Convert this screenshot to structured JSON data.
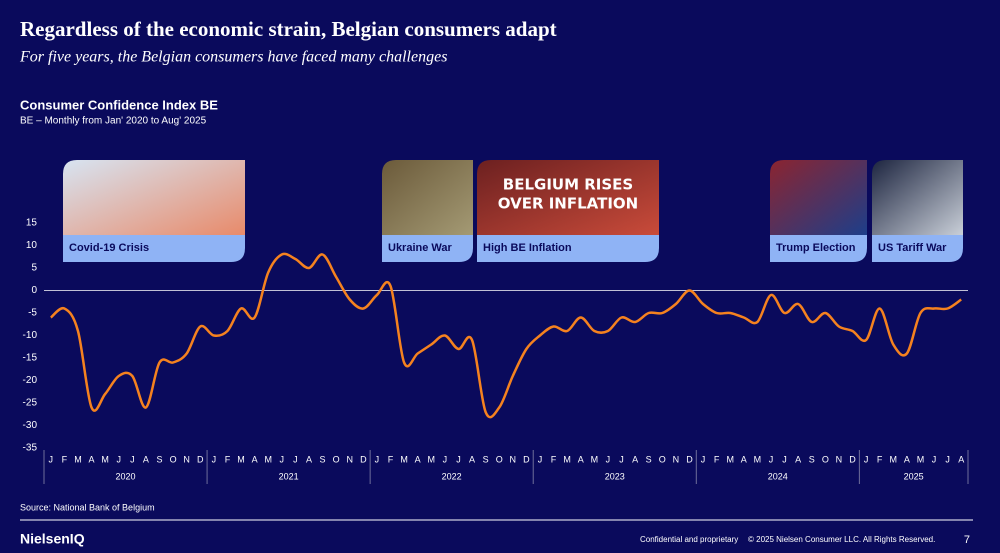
{
  "slide": {
    "headline": "Regardless of the economic strain, Belgian consumers adapt",
    "subheadline": "For five years, the Belgian consumers have faced many challenges",
    "source": "Source: National Bank of Belgium",
    "logo": "NielsenIQ",
    "confidential": "Confidential and proprietary",
    "copyright": "© 2025 Nielsen Consumer LLC. All Rights Reserved.",
    "page_number": "7"
  },
  "chart_data": {
    "type": "line",
    "title": "Consumer Confidence Index BE",
    "subtitle": "BE – Monthly from Jan' 2020 to Aug' 2025",
    "categories": [
      "J",
      "F",
      "M",
      "A",
      "M",
      "J",
      "J",
      "A",
      "S",
      "O",
      "N",
      "D",
      "J",
      "F",
      "M",
      "A",
      "M",
      "J",
      "J",
      "A",
      "S",
      "O",
      "N",
      "D",
      "J",
      "F",
      "M",
      "A",
      "M",
      "J",
      "J",
      "A",
      "S",
      "O",
      "N",
      "D",
      "J",
      "F",
      "M",
      "A",
      "M",
      "J",
      "J",
      "A",
      "S",
      "O",
      "N",
      "D",
      "J",
      "F",
      "M",
      "A",
      "M",
      "J",
      "J",
      "A",
      "S",
      "O",
      "N",
      "D",
      "J",
      "F",
      "M",
      "A",
      "M",
      "J",
      "J",
      "A"
    ],
    "years": [
      "2020",
      "2021",
      "2022",
      "2023",
      "2024",
      "2025"
    ],
    "series": [
      {
        "name": "Consumer Confidence Index BE",
        "color": "#f5821f",
        "values": [
          -6,
          -4,
          -9,
          -26,
          -23,
          -19,
          -19,
          -26,
          -16,
          -16,
          -14,
          -8,
          -10,
          -9,
          -4,
          -6,
          4,
          8,
          7,
          5,
          8,
          3,
          -2,
          -4,
          -1,
          1,
          -16,
          -14,
          -12,
          -10,
          -13,
          -11,
          -27,
          -26,
          -19,
          -13,
          -10,
          -8,
          -9,
          -6,
          -9,
          -9,
          -6,
          -7,
          -5,
          -5,
          -3,
          0,
          -3,
          -5,
          -5,
          -6,
          -7,
          -1,
          -5,
          -3,
          -7,
          -5,
          -8,
          -9,
          -11,
          -4,
          -12,
          -14,
          -5,
          -4,
          -4,
          -2
        ]
      }
    ],
    "ylim": [
      -35,
      15
    ],
    "yticks": [
      -35,
      -30,
      -25,
      -20,
      -15,
      -10,
      -5,
      0,
      5,
      10,
      15
    ],
    "zero_line": true,
    "annotations": [
      "Covid-19 Crisis",
      "Ukraine War",
      "High BE Inflation",
      "Trump Election",
      "US Tariff War"
    ],
    "inflation_image_text": [
      "BELGIUM RISES",
      "OVER INFLATION"
    ]
  }
}
